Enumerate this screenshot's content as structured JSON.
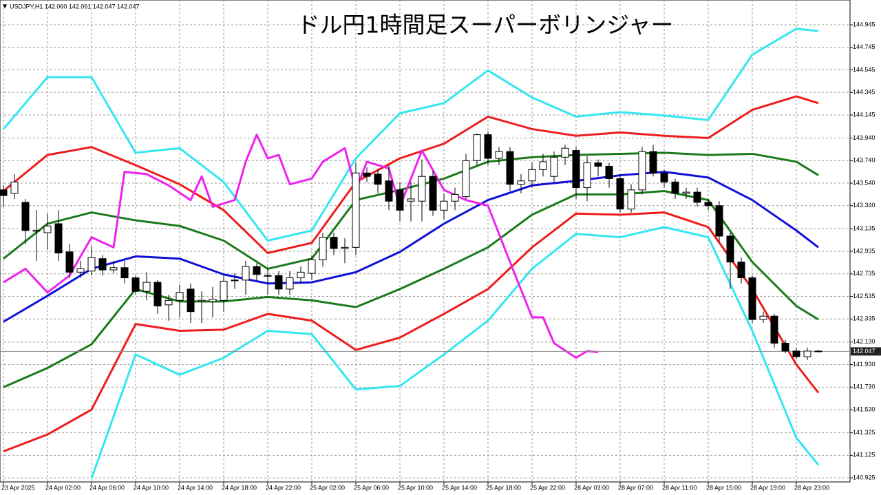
{
  "chart_data": {
    "type": "candlestick",
    "title": "ドル円1時間足スーパーボリンジャー",
    "symbol_info": "USDJPY,H1  142.060 142.061 142.047 142.047",
    "categories": [
      "23 Apr 2025",
      null,
      null,
      null,
      "24 Apr 02:00",
      null,
      null,
      null,
      "24 Apr 06:00",
      null,
      null,
      null,
      "24 Apr 10:00",
      null,
      null,
      null,
      "24 Apr 14:00",
      null,
      null,
      null,
      "24 Apr 18:00",
      null,
      null,
      null,
      "24 Apr 22:00",
      null,
      null,
      null,
      "25 Apr 02:00",
      null,
      null,
      null,
      "25 Apr 06:00",
      null,
      null,
      null,
      "25 Apr 10:00",
      null,
      null,
      null,
      "25 Apr 14:00",
      null,
      null,
      null,
      "25 Apr 18:00",
      null,
      null,
      null,
      "25 Apr 22:00",
      null,
      null,
      null,
      "28 Apr 03:00",
      null,
      null,
      null,
      "28 Apr 07:00",
      null,
      null,
      null,
      "28 Apr 11:00",
      null,
      null,
      null,
      "28 Apr 15:00",
      null,
      null,
      null,
      "28 Apr 19:00",
      null,
      null,
      null,
      "28 Apr 23:00",
      null,
      null
    ],
    "open": [
      143.48,
      143.45,
      143.37,
      143.12,
      143.1,
      143.18,
      142.93,
      142.75,
      142.76,
      142.87,
      142.77,
      142.79,
      142.7,
      142.58,
      142.66,
      142.46,
      142.5,
      142.6,
      142.49,
      142.49,
      142.5,
      142.68,
      142.68,
      142.8,
      142.72,
      142.72,
      142.6,
      142.7,
      142.74,
      142.86,
      143.06,
      142.96,
      142.97,
      143.63,
      143.62,
      143.56,
      143.48,
      143.38,
      143.38,
      143.6,
      143.3,
      143.38,
      143.42,
      143.74,
      143.97,
      143.76,
      143.82,
      143.53,
      143.56,
      143.66,
      143.6,
      143.77,
      143.83,
      143.5,
      143.72,
      143.69,
      143.58,
      143.31,
      143.48,
      143.82,
      143.63,
      143.55,
      143.45,
      143.46,
      143.37,
      143.34,
      143.07,
      142.84,
      142.7,
      142.33,
      142.36,
      142.12,
      142.05,
      142.0,
      142.05
    ],
    "high": [
      143.52,
      143.62,
      143.4,
      143.3,
      143.27,
      143.3,
      143.0,
      142.85,
      142.98,
      142.9,
      142.85,
      142.85,
      142.72,
      142.75,
      142.68,
      142.55,
      142.64,
      142.65,
      142.58,
      142.62,
      142.72,
      142.74,
      142.85,
      142.83,
      142.78,
      142.76,
      142.76,
      142.8,
      142.9,
      143.1,
      143.1,
      143.05,
      143.72,
      143.68,
      143.66,
      143.7,
      143.55,
      143.55,
      143.75,
      143.65,
      143.45,
      143.5,
      143.8,
      143.98,
      144.0,
      143.86,
      143.86,
      143.62,
      143.72,
      143.8,
      143.82,
      143.88,
      143.86,
      143.78,
      143.75,
      143.72,
      143.62,
      143.53,
      143.86,
      143.88,
      143.66,
      143.58,
      143.5,
      143.5,
      143.4,
      143.38,
      143.1,
      142.88,
      142.72,
      142.4,
      142.38,
      142.15,
      142.08,
      142.08,
      142.06
    ],
    "low": [
      143.33,
      143.4,
      143.0,
      142.85,
      142.95,
      142.85,
      142.7,
      142.7,
      142.72,
      142.72,
      142.74,
      142.65,
      142.55,
      142.5,
      142.38,
      142.32,
      142.35,
      142.3,
      142.3,
      142.35,
      142.4,
      142.6,
      142.55,
      142.68,
      142.55,
      142.55,
      142.55,
      142.65,
      142.68,
      142.8,
      142.9,
      142.83,
      142.9,
      143.55,
      143.45,
      143.3,
      143.2,
      143.2,
      143.2,
      143.25,
      143.22,
      143.3,
      143.4,
      143.7,
      143.7,
      143.7,
      143.47,
      143.45,
      143.5,
      143.6,
      143.55,
      143.7,
      143.4,
      143.38,
      143.6,
      143.5,
      143.28,
      143.28,
      143.44,
      143.6,
      143.5,
      143.4,
      143.4,
      143.33,
      143.3,
      143.02,
      142.6,
      142.65,
      142.3,
      142.3,
      142.08,
      142.03,
      141.98,
      141.97,
      142.04
    ],
    "close": [
      143.43,
      143.55,
      143.12,
      143.12,
      143.16,
      142.92,
      142.75,
      142.78,
      142.88,
      142.77,
      142.79,
      142.7,
      142.58,
      142.66,
      142.45,
      142.5,
      142.57,
      142.4,
      142.5,
      142.51,
      142.67,
      142.68,
      142.8,
      142.73,
      142.72,
      142.6,
      142.7,
      142.75,
      142.86,
      143.06,
      142.96,
      142.97,
      143.63,
      143.6,
      143.53,
      143.38,
      143.3,
      143.4,
      143.6,
      143.3,
      143.38,
      143.44,
      143.74,
      143.97,
      143.76,
      143.82,
      143.53,
      143.56,
      143.66,
      143.73,
      143.77,
      143.85,
      143.5,
      143.72,
      143.69,
      143.58,
      143.31,
      143.48,
      143.82,
      143.63,
      143.55,
      143.45,
      143.46,
      143.37,
      143.34,
      143.07,
      142.84,
      142.7,
      142.33,
      142.36,
      142.12,
      142.05,
      142.0,
      142.05,
      142.047
    ],
    "series": [
      {
        "color": "#33e6f0",
        "x": [
          0,
          4,
          8,
          12,
          16,
          20,
          24,
          28,
          32,
          36,
          40,
          44,
          48,
          52,
          56,
          60,
          64,
          68,
          72,
          74
        ],
        "values": [
          144.02,
          144.48,
          144.48,
          143.81,
          143.85,
          143.55,
          143.03,
          143.12,
          143.76,
          144.16,
          144.25,
          144.54,
          144.3,
          144.13,
          144.17,
          144.14,
          144.1,
          144.68,
          144.91,
          144.89
        ]
      },
      {
        "color": "#ee1c1c",
        "x": [
          0,
          4,
          8,
          12,
          16,
          20,
          24,
          28,
          32,
          36,
          40,
          44,
          48,
          52,
          56,
          60,
          64,
          68,
          72,
          74
        ],
        "values": [
          143.47,
          143.79,
          143.86,
          143.7,
          143.53,
          143.3,
          142.92,
          143.01,
          143.55,
          143.76,
          143.89,
          144.13,
          144.02,
          143.96,
          143.99,
          143.96,
          143.94,
          144.19,
          144.31,
          144.25
        ]
      },
      {
        "color": "#1a7a1a",
        "x": [
          0,
          4,
          8,
          12,
          16,
          20,
          24,
          28,
          32,
          36,
          40,
          44,
          48,
          52,
          56,
          60,
          64,
          68,
          72,
          74
        ],
        "values": [
          142.87,
          143.18,
          143.28,
          143.21,
          143.16,
          143.03,
          142.78,
          142.87,
          143.39,
          143.48,
          143.58,
          143.73,
          143.77,
          143.79,
          143.8,
          143.81,
          143.79,
          143.8,
          143.73,
          143.61
        ]
      },
      {
        "color": "#1010d8",
        "x": [
          0,
          4,
          8,
          12,
          16,
          20,
          24,
          28,
          32,
          36,
          40,
          44,
          48,
          52,
          56,
          60,
          64,
          68,
          72,
          74
        ],
        "values": [
          142.31,
          142.54,
          142.78,
          142.89,
          142.87,
          142.73,
          142.65,
          142.66,
          142.75,
          142.93,
          143.18,
          143.39,
          143.52,
          143.56,
          143.61,
          143.64,
          143.59,
          143.39,
          143.12,
          142.97
        ]
      },
      {
        "color": "#1a7a1a",
        "x": [
          0,
          4,
          8,
          12,
          16,
          20,
          24,
          28,
          32,
          36,
          40,
          44,
          48,
          52,
          56,
          60,
          64,
          68,
          72,
          74
        ],
        "values": [
          141.73,
          141.9,
          142.11,
          142.6,
          142.49,
          142.49,
          142.53,
          142.5,
          142.44,
          142.6,
          142.78,
          142.97,
          143.26,
          143.44,
          143.44,
          143.47,
          143.39,
          142.84,
          142.45,
          142.33
        ]
      },
      {
        "color": "#ee1c1c",
        "x": [
          0,
          4,
          8,
          12,
          16,
          20,
          24,
          28,
          32,
          36,
          40,
          44,
          48,
          52,
          56,
          60,
          64,
          68,
          72,
          74
        ],
        "values": [
          141.16,
          141.31,
          141.53,
          142.29,
          142.23,
          142.24,
          142.38,
          142.32,
          142.06,
          142.17,
          142.38,
          142.6,
          142.97,
          143.27,
          143.26,
          143.28,
          143.15,
          142.6,
          141.93,
          141.68
        ]
      },
      {
        "color": "#33e6f0",
        "x": [
          8,
          12,
          16,
          20,
          24,
          28,
          32,
          36,
          40,
          44,
          48,
          52,
          56,
          60,
          64,
          68,
          72,
          74
        ],
        "values": [
          140.92,
          142.02,
          141.84,
          141.99,
          142.23,
          142.2,
          141.71,
          141.74,
          142.02,
          142.32,
          142.78,
          143.09,
          143.06,
          143.15,
          143.06,
          142.23,
          141.28,
          141.04
        ]
      },
      {
        "color": "#ee22ee",
        "x": [
          0,
          2,
          4,
          6,
          8,
          10,
          11,
          13,
          15,
          17,
          18,
          19,
          21,
          22,
          23,
          24,
          25,
          26,
          28,
          29,
          31,
          32,
          33,
          35,
          36,
          38,
          40,
          42,
          44,
          46,
          48,
          49,
          50,
          52,
          53,
          54
        ],
        "values": [
          142.66,
          142.78,
          142.57,
          142.72,
          143.06,
          142.97,
          143.64,
          143.62,
          143.52,
          143.39,
          143.6,
          143.33,
          143.39,
          143.73,
          143.97,
          143.76,
          143.79,
          143.53,
          143.58,
          143.73,
          143.85,
          143.48,
          143.73,
          143.67,
          143.33,
          143.83,
          143.48,
          143.39,
          143.34,
          142.84,
          142.35,
          142.35,
          142.12,
          141.99,
          142.05,
          142.04
        ]
      }
    ],
    "current_price": 142.047,
    "ylim": [
      140.889,
      145.165
    ],
    "yticks": [
      144.945,
      144.745,
      144.545,
      144.345,
      144.145,
      {
        "value": 143.94,
        "label": "143.940"
      },
      {
        "value": 143.74,
        "label": "143.740"
      },
      {
        "value": 143.54,
        "label": "143.540"
      },
      {
        "value": 143.34,
        "label": "143.340"
      },
      143.135,
      142.935,
      142.735,
      142.535,
      142.335,
      {
        "value": 142.13,
        "label": "142.130"
      },
      {
        "value": 141.93,
        "label": "141.930"
      },
      {
        "value": 141.73,
        "label": "141.730"
      },
      {
        "value": 141.53,
        "label": "141.530"
      },
      141.325,
      141.125,
      140.925
    ],
    "grid": true
  }
}
